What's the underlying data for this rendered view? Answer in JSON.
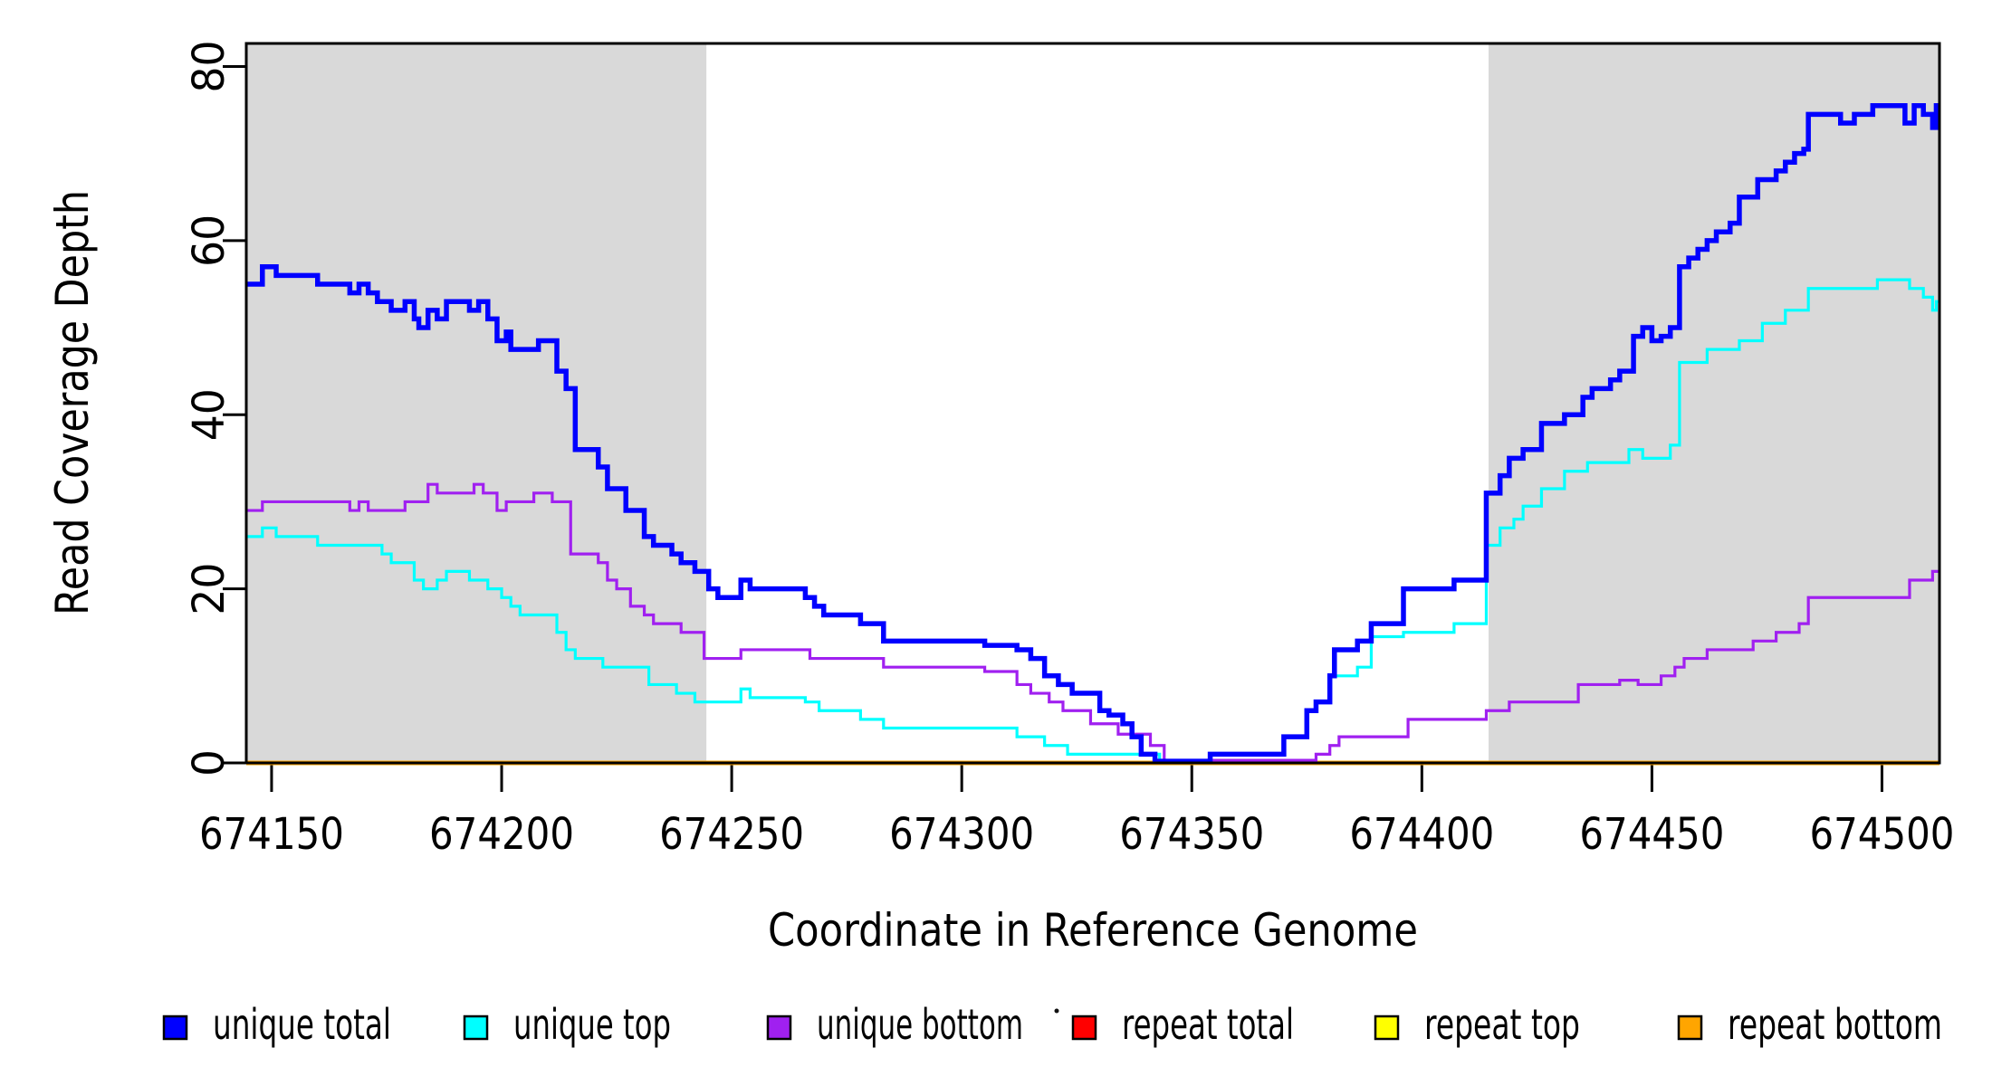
{
  "figure": {
    "x_axis_title": "Coordinate in Reference Genome",
    "y_axis_title": "Read Coverage Depth"
  },
  "colors": {
    "unique_total": "#0000FF",
    "unique_top": "#00FFFF",
    "unique_bottom": "#A020F0",
    "repeat_total": "#FF0000",
    "repeat_top": "#FFFF00",
    "repeat_bottom": "#FFA500",
    "shaded_region": "#D9D9D9",
    "axis": "#000000",
    "background": "#FFFFFF"
  },
  "legend": {
    "items": [
      {
        "label": "unique total",
        "color_key": "unique_total"
      },
      {
        "label": "unique top",
        "color_key": "unique_top"
      },
      {
        "label": "unique bottom",
        "color_key": "unique_bottom"
      },
      {
        "label": "repeat total",
        "color_key": "repeat_total"
      },
      {
        "label": "repeat top",
        "color_key": "repeat_top"
      },
      {
        "label": "repeat bottom",
        "color_key": "repeat_bottom"
      }
    ]
  },
  "chart_data": {
    "type": "line",
    "step_mode": "step-after",
    "title": "",
    "xlabel": "Coordinate in Reference Genome",
    "ylabel": "Read Coverage Depth",
    "x_domain": [
      674144.5,
      674512.5
    ],
    "ylim": [
      0,
      80
    ],
    "y_top_value": 82.65,
    "x_ticks": [
      674150,
      674200,
      674250,
      674300,
      674350,
      674400,
      674450,
      674500
    ],
    "y_ticks": [
      0,
      20,
      40,
      60,
      80
    ],
    "grid": false,
    "legend_position": "bottom",
    "shaded_regions": [
      {
        "from": 674144.5,
        "to": 674244.5
      },
      {
        "from": 674414.5,
        "to": 674512.5
      }
    ],
    "series": [
      {
        "name": "repeat total",
        "color_key": "repeat_total",
        "line_width": 3,
        "points": [
          [
            674144.5,
            0
          ]
        ]
      },
      {
        "name": "repeat top",
        "color_key": "repeat_top",
        "line_width": 3,
        "points": [
          [
            674144.5,
            0
          ]
        ]
      },
      {
        "name": "repeat bottom",
        "color_key": "repeat_bottom",
        "line_width": 5,
        "points": [
          [
            674144.5,
            0
          ]
        ]
      },
      {
        "name": "unique bottom",
        "color_key": "unique_bottom",
        "line_width": 3.2,
        "points": [
          [
            674144.5,
            29
          ],
          [
            674148,
            30
          ],
          [
            674167,
            29
          ],
          [
            674169,
            30
          ],
          [
            674171,
            29
          ],
          [
            674179,
            30
          ],
          [
            674184,
            32
          ],
          [
            674186,
            31
          ],
          [
            674194,
            32
          ],
          [
            674196,
            31
          ],
          [
            674199,
            29
          ],
          [
            674201,
            30
          ],
          [
            674207,
            31
          ],
          [
            674211,
            30
          ],
          [
            674215,
            24
          ],
          [
            674221,
            23
          ],
          [
            674223,
            21
          ],
          [
            674225,
            20
          ],
          [
            674228,
            18
          ],
          [
            674231,
            17
          ],
          [
            674233,
            16
          ],
          [
            674239,
            15
          ],
          [
            674244,
            12
          ],
          [
            674252,
            13
          ],
          [
            674267,
            12
          ],
          [
            674283,
            11
          ],
          [
            674305,
            10.5
          ],
          [
            674312,
            9
          ],
          [
            674315,
            8
          ],
          [
            674319,
            7
          ],
          [
            674322,
            6
          ],
          [
            674328,
            4.5
          ],
          [
            674334,
            3.3
          ],
          [
            674341,
            2
          ],
          [
            674344,
            0.3
          ],
          [
            674377,
            1
          ],
          [
            674380,
            2
          ],
          [
            674382,
            3
          ],
          [
            674397,
            5
          ],
          [
            674414,
            6
          ],
          [
            674419,
            7
          ],
          [
            674434,
            9
          ],
          [
            674443,
            9.5
          ],
          [
            674447,
            9
          ],
          [
            674452,
            10
          ],
          [
            674455,
            11
          ],
          [
            674457,
            12
          ],
          [
            674462,
            13
          ],
          [
            674472,
            14
          ],
          [
            674477,
            15
          ],
          [
            674482,
            16
          ],
          [
            674484,
            19
          ],
          [
            674506,
            21
          ],
          [
            674511,
            22
          ]
        ]
      },
      {
        "name": "unique top",
        "color_key": "unique_top",
        "line_width": 3.2,
        "points": [
          [
            674144.5,
            26
          ],
          [
            674148,
            27
          ],
          [
            674151,
            26
          ],
          [
            674160,
            25
          ],
          [
            674174,
            24
          ],
          [
            674176,
            23
          ],
          [
            674181,
            21
          ],
          [
            674183,
            20
          ],
          [
            674186,
            21
          ],
          [
            674188,
            22
          ],
          [
            674193,
            21
          ],
          [
            674197,
            20
          ],
          [
            674200,
            19
          ],
          [
            674202,
            18
          ],
          [
            674204,
            17
          ],
          [
            674212,
            15
          ],
          [
            674214,
            13
          ],
          [
            674216,
            12
          ],
          [
            674222,
            11
          ],
          [
            674232,
            9
          ],
          [
            674238,
            8
          ],
          [
            674242,
            7
          ],
          [
            674252,
            8.5
          ],
          [
            674254,
            7.5
          ],
          [
            674266,
            7
          ],
          [
            674269,
            6
          ],
          [
            674278,
            5
          ],
          [
            674283,
            4
          ],
          [
            674312,
            3
          ],
          [
            674318,
            2
          ],
          [
            674323,
            1
          ],
          [
            674343,
            0.2
          ],
          [
            674354,
            1
          ],
          [
            674370,
            3
          ],
          [
            674375,
            6
          ],
          [
            674377,
            7
          ],
          [
            674380,
            10
          ],
          [
            674386,
            11
          ],
          [
            674389,
            14.5
          ],
          [
            674396,
            15
          ],
          [
            674407,
            16
          ],
          [
            674414,
            25
          ],
          [
            674417,
            27
          ],
          [
            674420,
            28
          ],
          [
            674422,
            29.5
          ],
          [
            674426,
            31.5
          ],
          [
            674431,
            33.5
          ],
          [
            674436,
            34.5
          ],
          [
            674445,
            36
          ],
          [
            674448,
            35
          ],
          [
            674454,
            36.5
          ],
          [
            674456,
            46
          ],
          [
            674462,
            47.5
          ],
          [
            674469,
            48.5
          ],
          [
            674474,
            50.5
          ],
          [
            674479,
            52
          ],
          [
            674484,
            54.5
          ],
          [
            674499,
            55.5
          ],
          [
            674506,
            54.5
          ],
          [
            674509,
            53.5
          ],
          [
            674511,
            52
          ],
          [
            674511.8,
            53
          ]
        ]
      },
      {
        "name": "unique total",
        "color_key": "unique_total",
        "line_width": 5.5,
        "points": [
          [
            674144.5,
            55
          ],
          [
            674148,
            57
          ],
          [
            674151,
            56
          ],
          [
            674160,
            55
          ],
          [
            674167,
            54
          ],
          [
            674169,
            55
          ],
          [
            674171,
            54
          ],
          [
            674173,
            53
          ],
          [
            674176,
            52
          ],
          [
            674179,
            53
          ],
          [
            674181,
            51
          ],
          [
            674182,
            50
          ],
          [
            674184,
            52
          ],
          [
            674186,
            51
          ],
          [
            674188,
            53
          ],
          [
            674193,
            52
          ],
          [
            674195,
            53
          ],
          [
            674197,
            51
          ],
          [
            674199,
            48.5
          ],
          [
            674201,
            49.5
          ],
          [
            674202,
            47.5
          ],
          [
            674208,
            48.5
          ],
          [
            674212,
            45
          ],
          [
            674214,
            43
          ],
          [
            674216,
            36
          ],
          [
            674221,
            34
          ],
          [
            674223,
            31.5
          ],
          [
            674227,
            29
          ],
          [
            674231,
            26
          ],
          [
            674233,
            25
          ],
          [
            674237,
            24
          ],
          [
            674239,
            23
          ],
          [
            674242,
            22
          ],
          [
            674245,
            20
          ],
          [
            674247,
            19
          ],
          [
            674252,
            21
          ],
          [
            674254,
            20
          ],
          [
            674266,
            19
          ],
          [
            674268,
            18
          ],
          [
            674270,
            17
          ],
          [
            674278,
            16
          ],
          [
            674283,
            14
          ],
          [
            674305,
            13.5
          ],
          [
            674312,
            13
          ],
          [
            674315,
            12
          ],
          [
            674318,
            10
          ],
          [
            674321,
            9
          ],
          [
            674324,
            8
          ],
          [
            674330,
            6
          ],
          [
            674332,
            5.5
          ],
          [
            674335,
            4.5
          ],
          [
            674337,
            3
          ],
          [
            674339,
            1
          ],
          [
            674342,
            0.2
          ],
          [
            674354,
            1
          ],
          [
            674370,
            3
          ],
          [
            674375,
            6
          ],
          [
            674377,
            7
          ],
          [
            674380,
            10
          ],
          [
            674381,
            13
          ],
          [
            674386,
            14
          ],
          [
            674389,
            16
          ],
          [
            674396,
            20
          ],
          [
            674407,
            21
          ],
          [
            674414,
            31
          ],
          [
            674417,
            33
          ],
          [
            674419,
            35
          ],
          [
            674422,
            36
          ],
          [
            674426,
            39
          ],
          [
            674431,
            40
          ],
          [
            674435,
            42
          ],
          [
            674437,
            43
          ],
          [
            674441,
            44
          ],
          [
            674443,
            45
          ],
          [
            674446,
            49
          ],
          [
            674448,
            50
          ],
          [
            674450,
            48.5
          ],
          [
            674452,
            49
          ],
          [
            674454,
            50
          ],
          [
            674456,
            57
          ],
          [
            674458,
            58
          ],
          [
            674460,
            59
          ],
          [
            674462,
            60
          ],
          [
            674464,
            61
          ],
          [
            674467,
            62
          ],
          [
            674469,
            65
          ],
          [
            674473,
            67
          ],
          [
            674477,
            68
          ],
          [
            674479,
            69
          ],
          [
            674481,
            70
          ],
          [
            674483,
            70.5
          ],
          [
            674484,
            74.5
          ],
          [
            674491,
            73.5
          ],
          [
            674494,
            74.5
          ],
          [
            674498,
            75.5
          ],
          [
            674505,
            73.5
          ],
          [
            674507,
            75.5
          ],
          [
            674509,
            74.5
          ],
          [
            674511,
            73
          ],
          [
            674511.8,
            75.5
          ]
        ]
      }
    ]
  }
}
